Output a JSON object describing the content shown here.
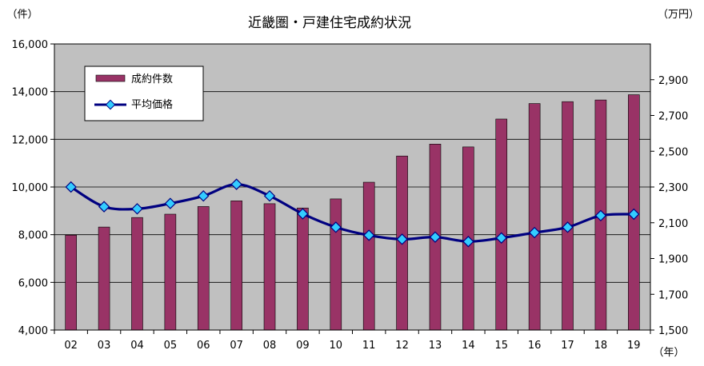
{
  "chart_data": {
    "type": "bar",
    "title": "近畿圏・戸建住宅成約状況",
    "left_axis_unit": "（件）",
    "right_axis_unit": "（万円）",
    "x_axis_unit": "（年）",
    "categories": [
      "02",
      "03",
      "04",
      "05",
      "06",
      "07",
      "08",
      "09",
      "10",
      "11",
      "12",
      "13",
      "14",
      "15",
      "16",
      "17",
      "18",
      "19"
    ],
    "series": [
      {
        "name": "成約件数",
        "kind": "bar",
        "axis": "left",
        "color": "#993366",
        "values": [
          7980,
          8320,
          8720,
          8860,
          9180,
          9420,
          9300,
          9120,
          9500,
          10200,
          11300,
          11800,
          11680,
          12850,
          13500,
          13580,
          13650,
          13870
        ]
      },
      {
        "name": "平均価格",
        "kind": "line",
        "axis": "right",
        "color": "#000080",
        "marker_color": "#33ccff",
        "values": [
          2300,
          2190,
          2178,
          2208,
          2250,
          2315,
          2250,
          2150,
          2075,
          2030,
          2008,
          2020,
          1995,
          2015,
          2045,
          2075,
          2140,
          2148
        ]
      }
    ],
    "left_axis": {
      "min": 4000,
      "max": 16000,
      "ticks": [
        4000,
        6000,
        8000,
        10000,
        12000,
        14000,
        16000
      ],
      "tick_labels": [
        "4,000",
        "6,000",
        "8,000",
        "10,000",
        "12,000",
        "14,000",
        "16,000"
      ]
    },
    "right_axis": {
      "min": 1500,
      "max": 3100,
      "ticks": [
        1500,
        1700,
        1900,
        2100,
        2300,
        2500,
        2700,
        2900
      ],
      "tick_labels": [
        "1,500",
        "1,700",
        "1,900",
        "2,100",
        "2,300",
        "2,500",
        "2,700",
        "2,900"
      ]
    },
    "grid": true,
    "plot_background": "#c0c0c0",
    "legend_position": "top-left"
  }
}
